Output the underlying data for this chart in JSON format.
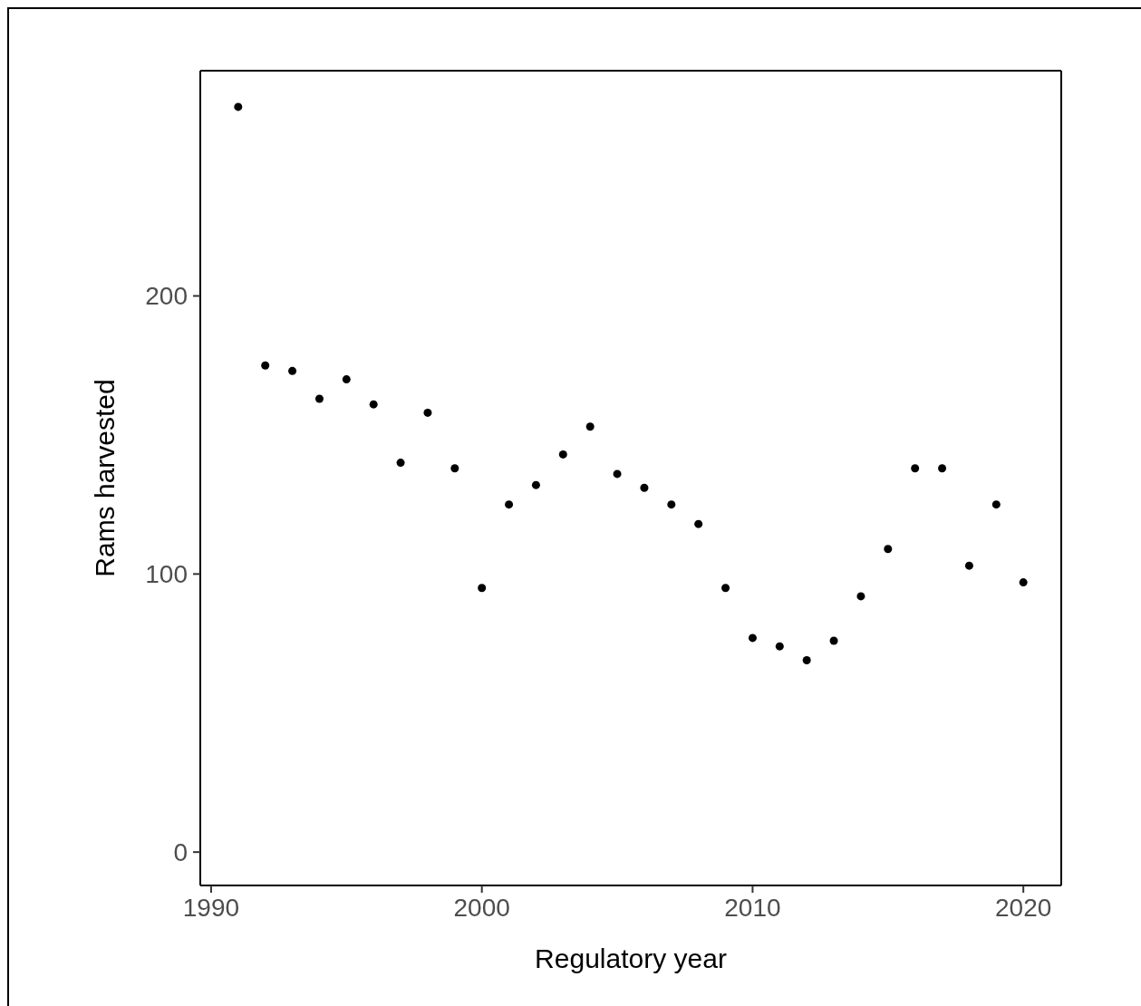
{
  "chart_data": {
    "type": "scatter",
    "xlabel": "Regulatory year",
    "ylabel": "Rams harvested",
    "x": [
      1991,
      1992,
      1993,
      1994,
      1995,
      1996,
      1997,
      1998,
      1999,
      2000,
      2001,
      2002,
      2003,
      2004,
      2005,
      2006,
      2007,
      2008,
      2009,
      2010,
      2011,
      2012,
      2013,
      2014,
      2015,
      2016,
      2017,
      2018,
      2019,
      2020
    ],
    "series": [
      {
        "color": "#000000",
        "values": [
          268,
          175,
          173,
          163,
          170,
          161,
          140,
          158,
          138,
          95,
          125,
          132,
          143,
          153,
          136,
          131,
          125,
          118,
          95,
          77,
          74,
          69,
          76,
          92,
          109,
          138,
          138,
          103,
          125,
          97
        ]
      }
    ],
    "xlim": [
      1989.6,
      2021.4
    ],
    "xticks": [
      1990,
      2000,
      2010,
      2020
    ],
    "ylim": [
      -12,
      281
    ],
    "yticks": [
      0,
      100,
      200
    ],
    "grid": false,
    "marker": "circle"
  }
}
